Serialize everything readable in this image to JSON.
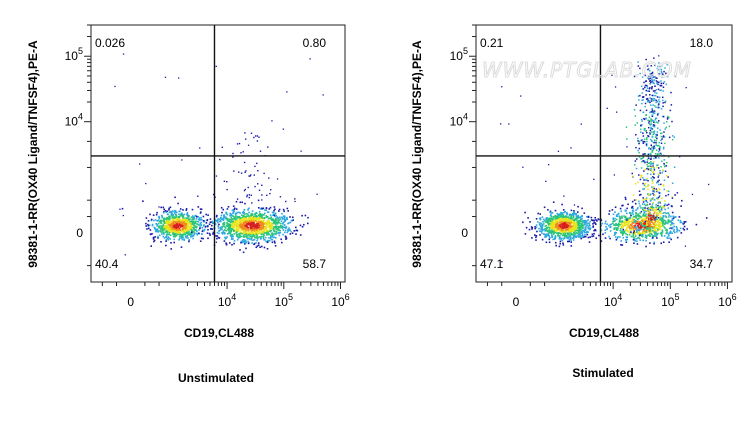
{
  "watermark": "WWW.PTGLAB.COM",
  "chart_data": [
    {
      "type": "scatter",
      "subtype": "flow-cytometry-density-dot-plot",
      "caption": "Unstimulated",
      "xlabel": "CD19,CL488",
      "ylabel": "98381-1-RR(OX40 Ligand/TNFSF4),PE-A",
      "x_scale": "biexponential",
      "y_scale": "biexponential",
      "x_ticks": [
        {
          "base": "0",
          "exp": ""
        },
        {
          "base": "10",
          "exp": "4"
        },
        {
          "base": "10",
          "exp": "5"
        },
        {
          "base": "10",
          "exp": "6"
        }
      ],
      "y_ticks": [
        {
          "base": "0",
          "exp": ""
        },
        {
          "base": "10",
          "exp": "4"
        },
        {
          "base": "10",
          "exp": "5"
        }
      ],
      "quadrants": {
        "upper_left": "0.026",
        "upper_right": "0.80",
        "lower_left": "40.4",
        "lower_right": "58.7"
      },
      "gate": {
        "x": 6000,
        "y": 3000
      },
      "populations": [
        {
          "name": "CD19-negative cluster",
          "x_center": 1500,
          "y_center": 0,
          "fraction": 0.404
        },
        {
          "name": "CD19-positive cluster",
          "x_center": 22000,
          "y_center": 0,
          "fraction": 0.587
        },
        {
          "name": "OX40L-high",
          "x_center": 25000,
          "y_center": 8000,
          "fraction": 0.008
        }
      ],
      "color_map": [
        "#1a1aa8",
        "#2ea8e0",
        "#29c47a",
        "#e8e41c",
        "#f08a1e",
        "#d81e1e"
      ]
    },
    {
      "type": "scatter",
      "subtype": "flow-cytometry-density-dot-plot",
      "caption": "Stimulated",
      "xlabel": "CD19,CL488",
      "ylabel": "98381-1-RR(OX40 Ligand/TNFSF4),PE-A",
      "x_scale": "biexponential",
      "y_scale": "biexponential",
      "x_ticks": [
        {
          "base": "0",
          "exp": ""
        },
        {
          "base": "10",
          "exp": "4"
        },
        {
          "base": "10",
          "exp": "5"
        },
        {
          "base": "10",
          "exp": "6"
        }
      ],
      "y_ticks": [
        {
          "base": "0",
          "exp": ""
        },
        {
          "base": "10",
          "exp": "4"
        },
        {
          "base": "10",
          "exp": "5"
        }
      ],
      "quadrants": {
        "upper_left": "0.21",
        "upper_right": "18.0",
        "lower_left": "47.1",
        "lower_right": "34.7"
      },
      "gate": {
        "x": 6000,
        "y": 3000
      },
      "populations": [
        {
          "name": "CD19-negative cluster",
          "x_center": 1500,
          "y_center": 0,
          "fraction": 0.471
        },
        {
          "name": "CD19-positive cluster",
          "x_center": 25000,
          "y_center": 0,
          "fraction": 0.347
        },
        {
          "name": "OX40L-high",
          "x_center": 55000,
          "y_center": 20000,
          "fraction": 0.18
        }
      ],
      "color_map": [
        "#1a1aa8",
        "#2ea8e0",
        "#29c47a",
        "#e8e41c",
        "#f08a1e",
        "#d81e1e"
      ]
    }
  ]
}
